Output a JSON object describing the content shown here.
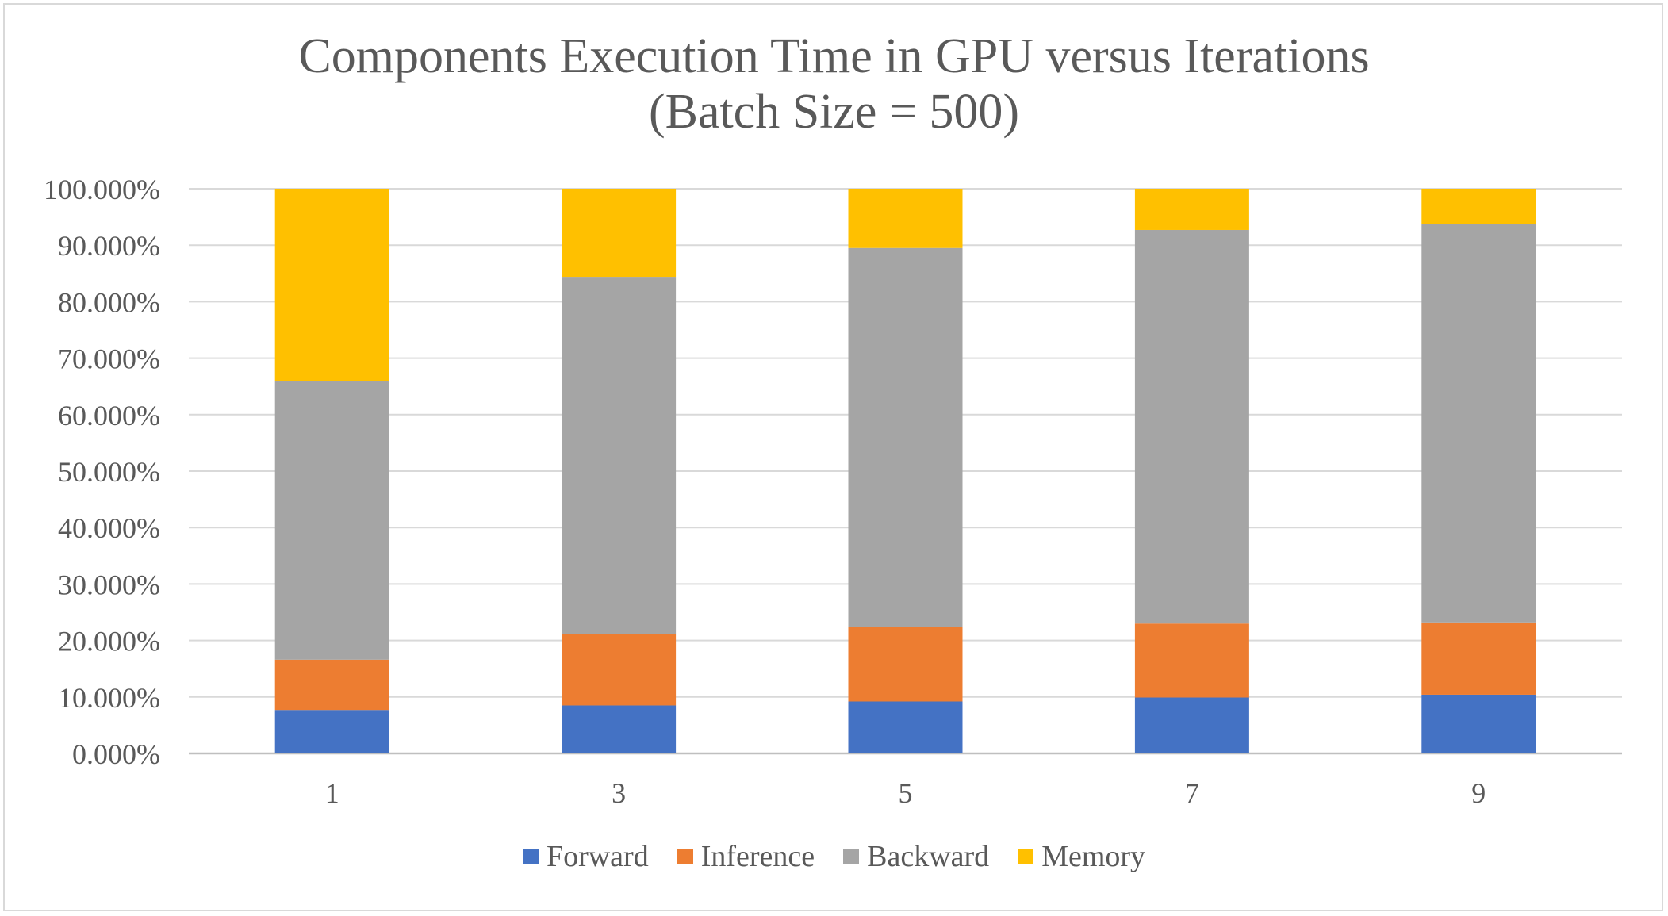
{
  "chart_data": {
    "type": "bar",
    "stacked": true,
    "title": "Components Execution Time in GPU versus Iterations",
    "subtitle": "(Batch Size = 500)",
    "xlabel": "",
    "ylabel": "",
    "categories": [
      "1",
      "3",
      "5",
      "7",
      "9"
    ],
    "ylim": [
      0,
      100
    ],
    "y_ticks": [
      "0.000%",
      "10.000%",
      "20.000%",
      "30.000%",
      "40.000%",
      "50.000%",
      "60.000%",
      "70.000%",
      "80.000%",
      "90.000%",
      "100.000%"
    ],
    "grid": true,
    "legend_position": "bottom",
    "series": [
      {
        "name": "Forward",
        "color": "#4472c4",
        "values": [
          7.7,
          8.5,
          9.2,
          9.9,
          10.4
        ]
      },
      {
        "name": "Inference",
        "color": "#ed7d31",
        "values": [
          8.9,
          12.7,
          13.2,
          13.1,
          12.8
        ]
      },
      {
        "name": "Backward",
        "color": "#a5a5a5",
        "values": [
          49.3,
          63.2,
          67.1,
          69.7,
          70.6
        ]
      },
      {
        "name": "Memory",
        "color": "#ffc000",
        "values": [
          34.1,
          15.6,
          10.5,
          7.3,
          6.2
        ]
      }
    ]
  }
}
